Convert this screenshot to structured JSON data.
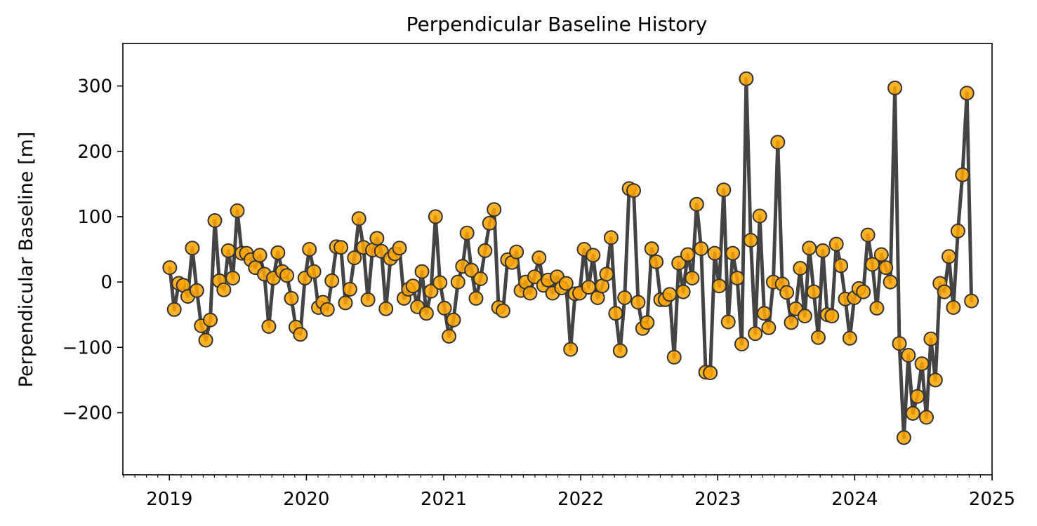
{
  "chart_data": {
    "type": "line",
    "title": "Perpendicular Baseline History",
    "xlabel": "",
    "ylabel": "Perpendicular Baseline [m]",
    "x_ticks": [
      "2019",
      "2020",
      "2021",
      "2022",
      "2023",
      "2024",
      "2025"
    ],
    "y_ticks": [
      {
        "value": 300,
        "label": "300"
      },
      {
        "value": 200,
        "label": "200"
      },
      {
        "value": 100,
        "label": "100"
      },
      {
        "value": 0,
        "label": "0"
      },
      {
        "value": -100,
        "label": "−100"
      },
      {
        "value": -200,
        "label": "−200"
      }
    ],
    "xlim": [
      "2018-08-30",
      "2025-01-01"
    ],
    "ylim": [
      -295,
      365
    ],
    "grid": false,
    "line_color": "#444444",
    "marker_face_color": "#FFA500",
    "marker_edge_color": "#333333",
    "series": [
      {
        "x": [
          "2019-01-02",
          "2019-01-14",
          "2019-01-26",
          "2019-02-07",
          "2019-02-19",
          "2019-03-03",
          "2019-03-15",
          "2019-03-27",
          "2019-04-08",
          "2019-04-20",
          "2019-05-02",
          "2019-05-14",
          "2019-05-26",
          "2019-06-07",
          "2019-06-19",
          "2019-07-01",
          "2019-07-13",
          "2019-07-25",
          "2019-08-06",
          "2019-08-18",
          "2019-08-30",
          "2019-09-11",
          "2019-09-23",
          "2019-10-05",
          "2019-10-17",
          "2019-10-29",
          "2019-11-10",
          "2019-11-22",
          "2019-12-04",
          "2019-12-16",
          "2019-12-28",
          "2020-01-09",
          "2020-01-21",
          "2020-02-02",
          "2020-02-14",
          "2020-02-26",
          "2020-03-09",
          "2020-03-21",
          "2020-04-02",
          "2020-04-14",
          "2020-04-26",
          "2020-05-08",
          "2020-05-20",
          "2020-06-01",
          "2020-06-13",
          "2020-06-25",
          "2020-07-07",
          "2020-07-19",
          "2020-07-31",
          "2020-08-12",
          "2020-08-24",
          "2020-09-05",
          "2020-09-17",
          "2020-09-29",
          "2020-10-11",
          "2020-10-23",
          "2020-11-04",
          "2020-11-16",
          "2020-11-28",
          "2020-12-10",
          "2020-12-22",
          "2021-01-03",
          "2021-01-15",
          "2021-01-27",
          "2021-02-08",
          "2021-02-20",
          "2021-03-04",
          "2021-03-16",
          "2021-03-28",
          "2021-04-09",
          "2021-04-21",
          "2021-05-03",
          "2021-05-15",
          "2021-05-27",
          "2021-06-08",
          "2021-06-20",
          "2021-07-02",
          "2021-07-14",
          "2021-07-26",
          "2021-08-07",
          "2021-08-19",
          "2021-08-31",
          "2021-09-12",
          "2021-09-24",
          "2021-10-06",
          "2021-10-18",
          "2021-10-30",
          "2021-11-11",
          "2021-11-23",
          "2021-12-05",
          "2021-12-17",
          "2021-12-29",
          "2022-01-10",
          "2022-01-22",
          "2022-02-03",
          "2022-02-15",
          "2022-02-27",
          "2022-03-11",
          "2022-03-23",
          "2022-04-04",
          "2022-04-16",
          "2022-04-28",
          "2022-05-10",
          "2022-05-22",
          "2022-06-03",
          "2022-06-15",
          "2022-06-27",
          "2022-07-09",
          "2022-07-21",
          "2022-08-02",
          "2022-08-14",
          "2022-08-26",
          "2022-09-07",
          "2022-09-19",
          "2022-10-01",
          "2022-10-13",
          "2022-10-25",
          "2022-11-06",
          "2022-11-18",
          "2022-11-30",
          "2022-12-12",
          "2022-12-24",
          "2023-01-05",
          "2023-01-17",
          "2023-01-29",
          "2023-02-10",
          "2023-02-22",
          "2023-03-06",
          "2023-03-18",
          "2023-03-30",
          "2023-04-11",
          "2023-04-23",
          "2023-05-05",
          "2023-05-17",
          "2023-05-29",
          "2023-06-10",
          "2023-06-22",
          "2023-07-04",
          "2023-07-16",
          "2023-07-28",
          "2023-08-09",
          "2023-08-21",
          "2023-09-02",
          "2023-09-14",
          "2023-09-26",
          "2023-10-08",
          "2023-10-20",
          "2023-11-01",
          "2023-11-13",
          "2023-11-25",
          "2023-12-07",
          "2023-12-19",
          "2023-12-31",
          "2024-01-12",
          "2024-01-24",
          "2024-02-05",
          "2024-02-17",
          "2024-02-29",
          "2024-03-12",
          "2024-03-24",
          "2024-04-05",
          "2024-04-17",
          "2024-04-29",
          "2024-05-11",
          "2024-05-23",
          "2024-06-04",
          "2024-06-16",
          "2024-06-28",
          "2024-07-10",
          "2024-07-22",
          "2024-08-03",
          "2024-08-15",
          "2024-08-27",
          "2024-09-08",
          "2024-09-20",
          "2024-10-02",
          "2024-10-14",
          "2024-10-26",
          "2024-11-07"
        ],
        "y": [
          22,
          -42,
          -2,
          -5,
          -22,
          52,
          -13,
          -67,
          -89,
          -58,
          94,
          2,
          -12,
          48,
          6,
          109,
          44,
          44,
          34,
          22,
          41,
          12,
          -68,
          6,
          45,
          16,
          10,
          -25,
          -69,
          -80,
          6,
          50,
          16,
          -39,
          -31,
          -42,
          2,
          54,
          53,
          -32,
          -11,
          37,
          97,
          53,
          -27,
          49,
          67,
          47,
          -41,
          36,
          43,
          52,
          -25,
          -11,
          -6,
          -38,
          16,
          -48,
          -14,
          100,
          -1,
          -40,
          -83,
          -58,
          0,
          24,
          75,
          18,
          -25,
          5,
          48,
          90,
          111,
          -39,
          -44,
          34,
          30,
          46,
          -13,
          0,
          -17,
          8,
          37,
          -5,
          3,
          -17,
          8,
          -9,
          -2,
          -103,
          -18,
          -17,
          50,
          -8,
          41,
          -24,
          -6,
          12,
          68,
          -48,
          -105,
          -24,
          143,
          140,
          -31,
          -71,
          -62,
          51,
          31,
          -27,
          -27,
          -19,
          -115,
          29,
          -15,
          42,
          6,
          119,
          51,
          -138,
          -139,
          44,
          -6,
          141,
          -61,
          44,
          6,
          -95,
          311,
          64,
          -79,
          101,
          -48,
          -70,
          0,
          214,
          -3,
          -16,
          -62,
          -41,
          21,
          -52,
          52,
          -15,
          -85,
          48,
          -50,
          -52,
          58,
          25,
          -26,
          -86,
          -24,
          -10,
          -15,
          72,
          27,
          -40,
          42,
          22,
          0,
          297,
          -94,
          -238,
          -112,
          -201,
          -175,
          -125,
          -207,
          -87,
          -150,
          -2,
          -15,
          39,
          -39,
          78,
          164,
          289,
          -29
        ]
      }
    ]
  }
}
